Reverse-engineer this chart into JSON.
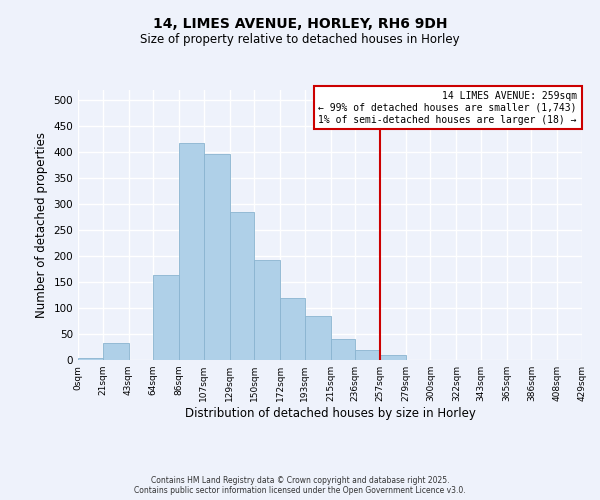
{
  "title": "14, LIMES AVENUE, HORLEY, RH6 9DH",
  "subtitle": "Size of property relative to detached houses in Horley",
  "xlabel": "Distribution of detached houses by size in Horley",
  "ylabel": "Number of detached properties",
  "bar_edges": [
    0,
    21,
    43,
    64,
    86,
    107,
    129,
    150,
    172,
    193,
    215,
    236,
    257,
    279,
    300,
    322,
    343,
    365,
    386,
    408,
    429
  ],
  "bar_heights": [
    4,
    32,
    0,
    163,
    418,
    397,
    285,
    192,
    120,
    85,
    40,
    20,
    10,
    0,
    0,
    0,
    0,
    0,
    0,
    0
  ],
  "bar_color": "#afd0e8",
  "bar_edge_color": "#8ab4d0",
  "vline_x": 257,
  "vline_color": "#cc0000",
  "annotation_title": "14 LIMES AVENUE: 259sqm",
  "annotation_line1": "← 99% of detached houses are smaller (1,743)",
  "annotation_line2": "1% of semi-detached houses are larger (18) →",
  "annotation_box_color": "#cc0000",
  "ylim": [
    0,
    520
  ],
  "yticks": [
    0,
    50,
    100,
    150,
    200,
    250,
    300,
    350,
    400,
    450,
    500
  ],
  "xlim": [
    0,
    429
  ],
  "tick_labels": [
    "0sqm",
    "21sqm",
    "43sqm",
    "64sqm",
    "86sqm",
    "107sqm",
    "129sqm",
    "150sqm",
    "172sqm",
    "193sqm",
    "215sqm",
    "236sqm",
    "257sqm",
    "279sqm",
    "300sqm",
    "322sqm",
    "343sqm",
    "365sqm",
    "386sqm",
    "408sqm",
    "429sqm"
  ],
  "footnote1": "Contains HM Land Registry data © Crown copyright and database right 2025.",
  "footnote2": "Contains public sector information licensed under the Open Government Licence v3.0.",
  "bg_color": "#eef2fb",
  "grid_color": "#ffffff"
}
